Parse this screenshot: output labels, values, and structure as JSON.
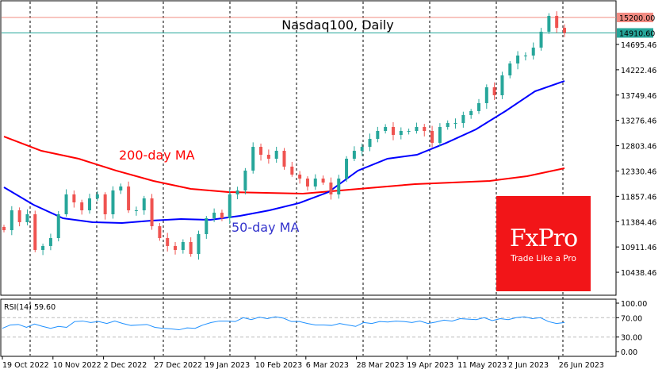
{
  "chart_data": {
    "type": "candlestick",
    "title": "Nasdaq100, Daily",
    "ylim": [
      10200,
      15400
    ],
    "y_ticks": [
      "14695.46",
      "14222.46",
      "13749.46",
      "13276.46",
      "12803.46",
      "12330.46",
      "11857.46",
      "11384.46",
      "10911.46",
      "10438.46"
    ],
    "x_ticks": [
      "19 Oct 2022",
      "10 Nov 2022",
      "2 Dec 2022",
      "27 Dec 2022",
      "19 Jan 2023",
      "10 Feb 2023",
      "6 Mar 2023",
      "28 Mar 2023",
      "19 Apr 2023",
      "11 May 2023",
      "2 Jun 2023",
      "26 Jun 2023"
    ],
    "closes": [
      11225,
      11596,
      11374,
      11522,
      10855,
      10929,
      11077,
      11522,
      11893,
      11744,
      11596,
      11819,
      11893,
      11522,
      11967,
      12041,
      11596,
      11596,
      11819,
      11299,
      11077,
      10929,
      10855,
      11003,
      10780,
      11151,
      11448,
      11552,
      11448,
      11893,
      11967,
      12338,
      12782,
      12634,
      12560,
      12708,
      12412,
      12263,
      12189,
      12041,
      12189,
      12115,
      11893,
      12189,
      12560,
      12708,
      12782,
      12931,
      13079,
      13153,
      13005,
      13079,
      13079,
      13153,
      13079,
      12857,
      13153,
      13227,
      13227,
      13376,
      13450,
      13598,
      13895,
      13746,
      14117,
      14340,
      14488,
      14488,
      14636,
      14933,
      15229,
      15006,
      14911
    ],
    "series": [
      {
        "name": "200-day MA",
        "color": "#ff0000",
        "values": [
          12975,
          12708,
          12560,
          12338,
          12145,
          11997,
          11937,
          11922,
          11908,
          11967,
          12026,
          12086,
          12115,
          12145,
          12234,
          12382
        ]
      },
      {
        "name": "50-day MA",
        "color": "#0000ff",
        "values": [
          12026,
          11700,
          11448,
          11374,
          11359,
          11404,
          11433,
          11418,
          11492,
          11596,
          11730,
          11937,
          12338,
          12560,
          12634,
          12857,
          13109,
          13450,
          13820,
          14013
        ]
      }
    ],
    "price_lines": [
      {
        "value": "15200.00",
        "color": "#f28b82"
      },
      {
        "value": "14910.60",
        "color": "#26a69a"
      }
    ],
    "rsi": {
      "label": "RSI(14) 59.60",
      "ylim": [
        0,
        100
      ],
      "ticks": [
        "100.00",
        "70.00",
        "30.00",
        "0.00"
      ],
      "levels": [
        70,
        30
      ],
      "color": "#1e90ff",
      "values": [
        48,
        55,
        56,
        50,
        57,
        52,
        48,
        52,
        50,
        62,
        63,
        60,
        62,
        58,
        63,
        58,
        54,
        55,
        56,
        50,
        48,
        47,
        45,
        49,
        48,
        55,
        60,
        63,
        63,
        62,
        70,
        66,
        71,
        68,
        72,
        69,
        62,
        62,
        58,
        55,
        55,
        54,
        58,
        55,
        52,
        60,
        58,
        62,
        61,
        63,
        62,
        60,
        63,
        58,
        61,
        65,
        63,
        68,
        67,
        66,
        70,
        64,
        68,
        66,
        70,
        72,
        68,
        70,
        62,
        58,
        60
      ]
    },
    "up_color": "#26a69a",
    "down_color": "#ef5350"
  },
  "logo": {
    "brand": "FxPro",
    "tagline": "Trade Like a Pro"
  }
}
